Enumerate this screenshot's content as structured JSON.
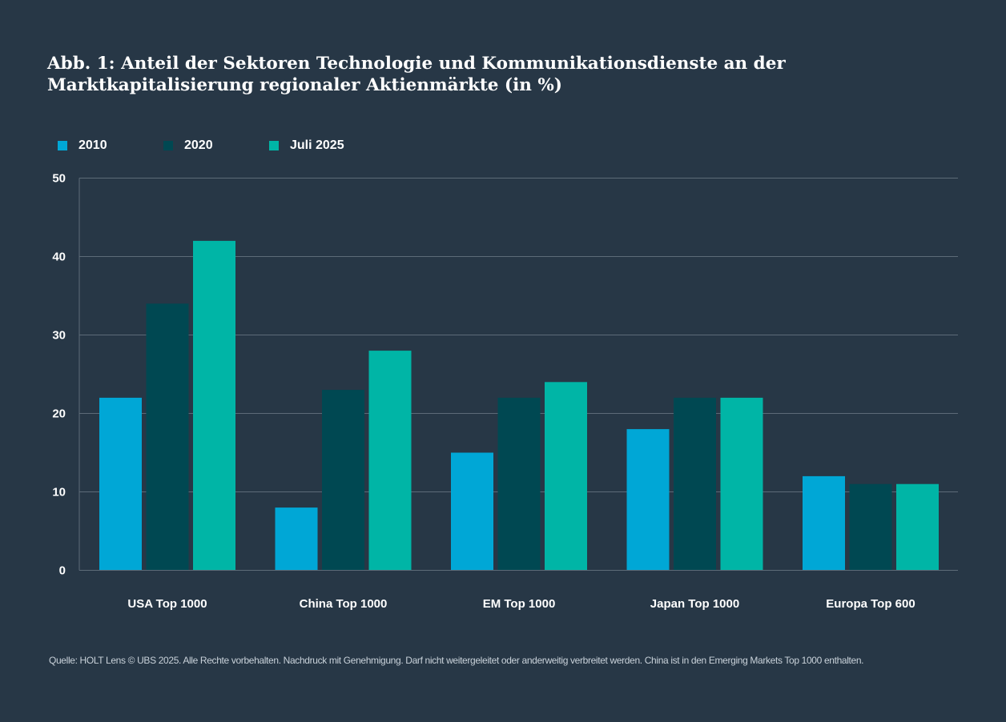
{
  "colors": {
    "background": "#273746",
    "s2010": "#00a7d6",
    "s2020": "#004852",
    "s2025": "#00b5a6",
    "gridline": "#5d6b78",
    "text": "#ffffff"
  },
  "chart_data": {
    "type": "bar",
    "title": "Abb. 1: Anteil der Sektoren Technologie und Kommunikationsdienste an der Marktkapitalisierung regionaler Aktienmärkte (in %)",
    "categories": [
      "USA Top 1000",
      "China Top 1000",
      "EM Top 1000",
      "Japan Top 1000",
      "Europa Top 600"
    ],
    "series": [
      {
        "name": "2010",
        "color": "#00a7d6",
        "values": [
          22,
          8,
          15,
          18,
          12
        ]
      },
      {
        "name": "2020",
        "color": "#004852",
        "values": [
          34,
          23,
          22,
          22,
          11
        ]
      },
      {
        "name": "Juli 2025",
        "color": "#00b5a6",
        "values": [
          42,
          28,
          24,
          22,
          11
        ]
      }
    ],
    "yticks": [
      0,
      10,
      20,
      30,
      40,
      50
    ],
    "ylim": [
      0,
      50
    ],
    "xlabel": "",
    "ylabel": "",
    "grid": true,
    "legend_position": "top-left"
  },
  "source": "Quelle: HOLT Lens © UBS 2025. Alle Rechte vorbehalten. Nachdruck mit Genehmigung. Darf nicht weitergeleitet oder anderweitig verbreitet werden. China ist in den Emerging Markets Top 1000 enthalten."
}
